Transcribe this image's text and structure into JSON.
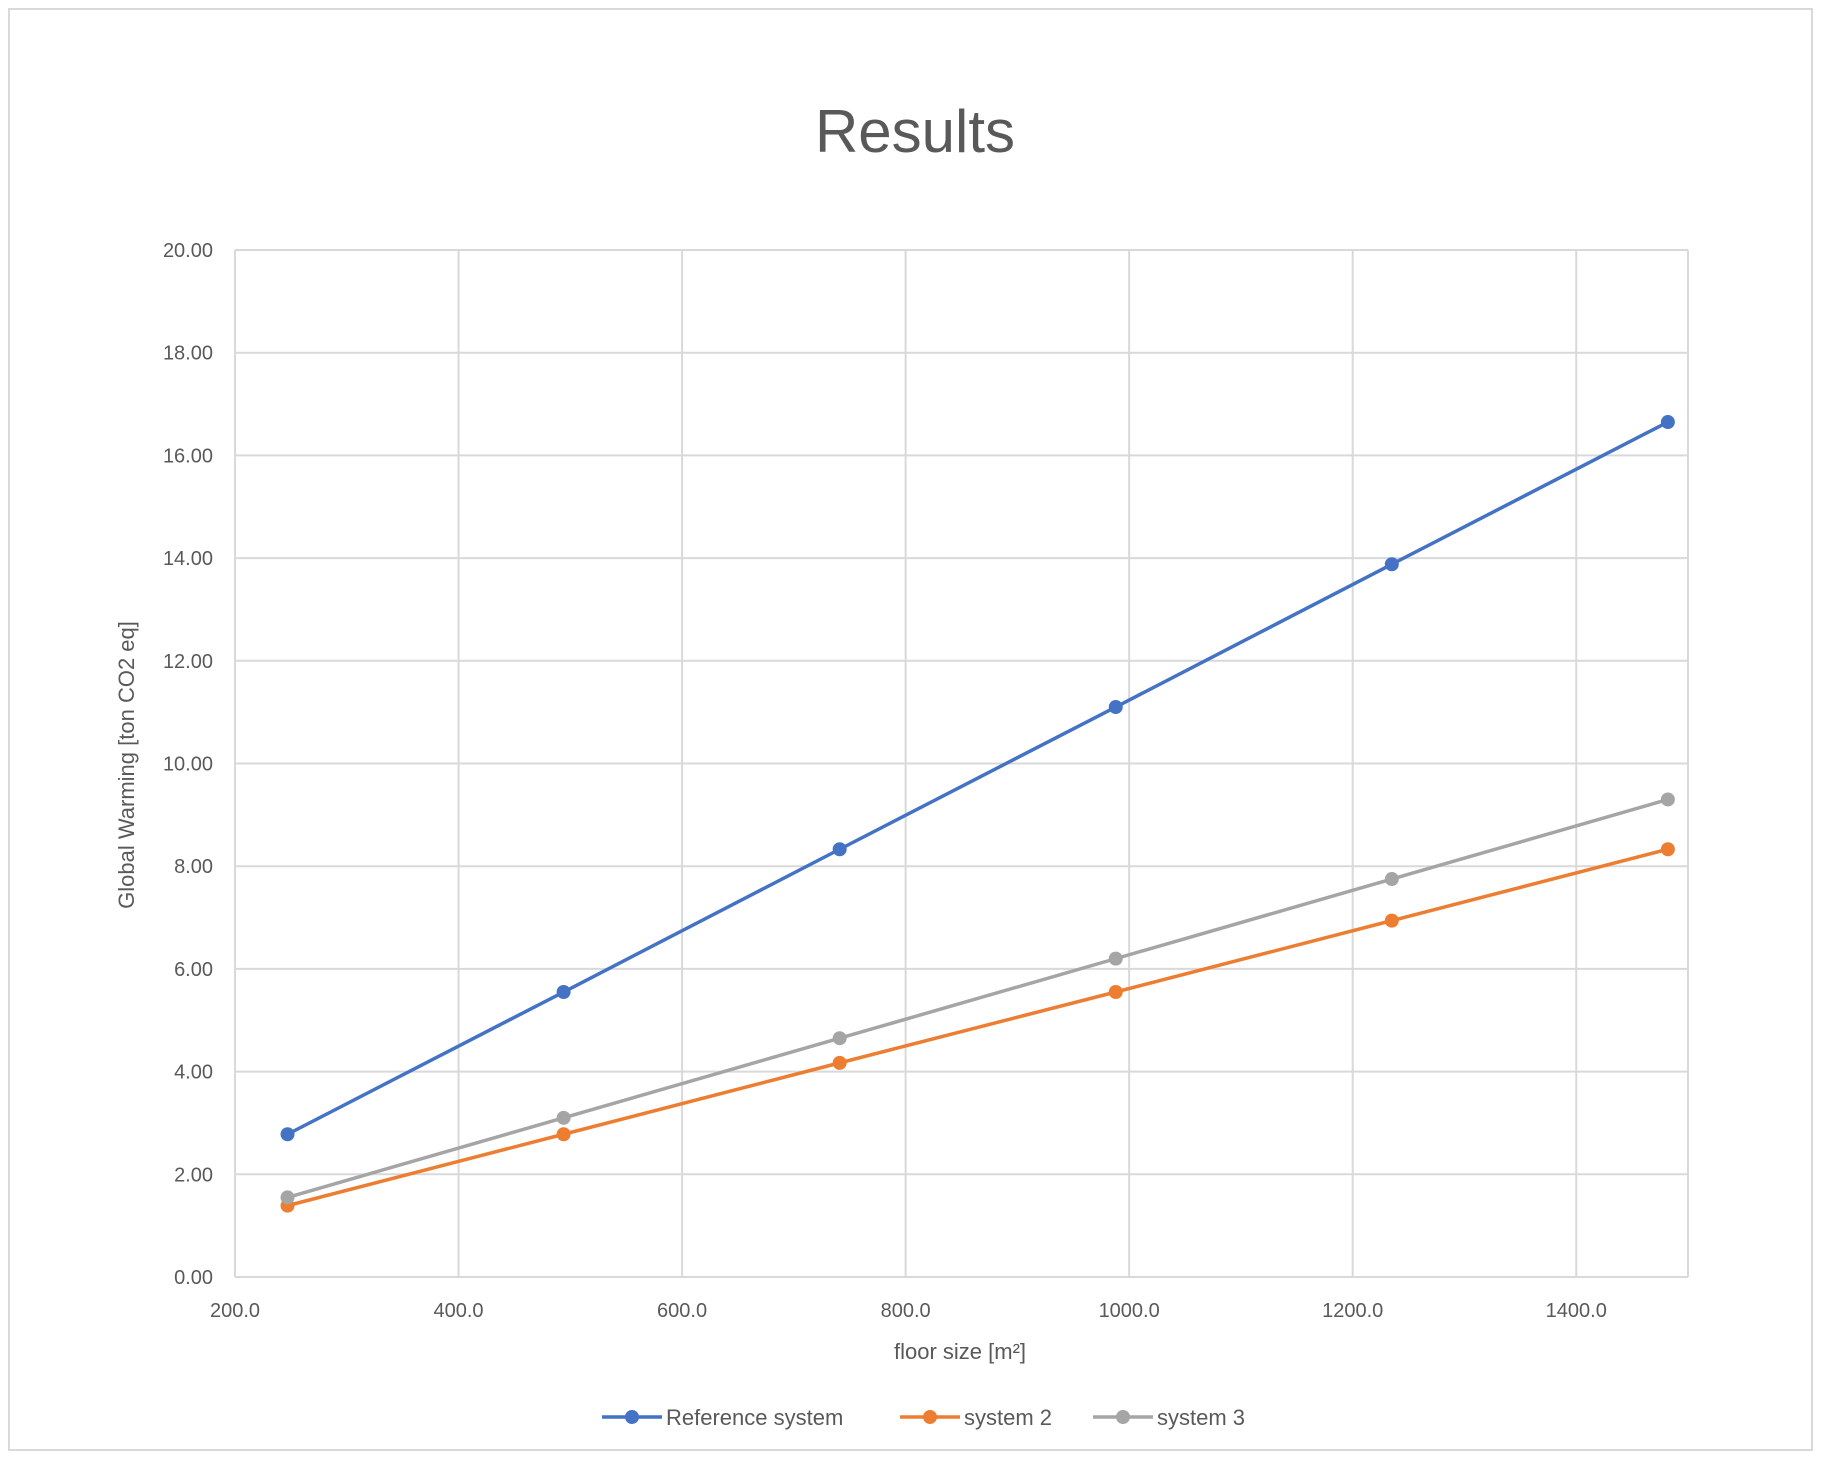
{
  "chart_data": {
    "type": "line",
    "title": "Results",
    "xlabel": "floor size [m²]",
    "ylabel": "Global Warming [ton CO2 eq]",
    "xlim": [
      200,
      1500
    ],
    "ylim": [
      0,
      20
    ],
    "x_ticks": [
      200,
      400,
      600,
      800,
      1000,
      1200,
      1400
    ],
    "x_tick_labels": [
      "200.0",
      "400.0",
      "600.0",
      "800.0",
      "1000.0",
      "1200.0",
      "1400.0"
    ],
    "y_ticks": [
      0,
      2,
      4,
      6,
      8,
      10,
      12,
      14,
      16,
      18,
      20
    ],
    "y_tick_labels": [
      "0.00",
      "2.00",
      "4.00",
      "6.00",
      "8.00",
      "10.00",
      "12.00",
      "14.00",
      "16.00",
      "18.00",
      "20.00"
    ],
    "grid": true,
    "legend_position": "bottom",
    "x": [
      247,
      494,
      741,
      988,
      1235,
      1482
    ],
    "series": [
      {
        "name": "Reference system",
        "color": "#4472c4",
        "values": [
          2.78,
          5.55,
          8.33,
          11.1,
          13.88,
          16.65
        ]
      },
      {
        "name": "system 2",
        "color": "#ed7d31",
        "values": [
          1.39,
          2.78,
          4.17,
          5.55,
          6.94,
          8.33
        ]
      },
      {
        "name": "system 3",
        "color": "#a5a5a5",
        "values": [
          1.55,
          3.1,
          4.65,
          6.2,
          7.75,
          9.3
        ]
      }
    ]
  }
}
